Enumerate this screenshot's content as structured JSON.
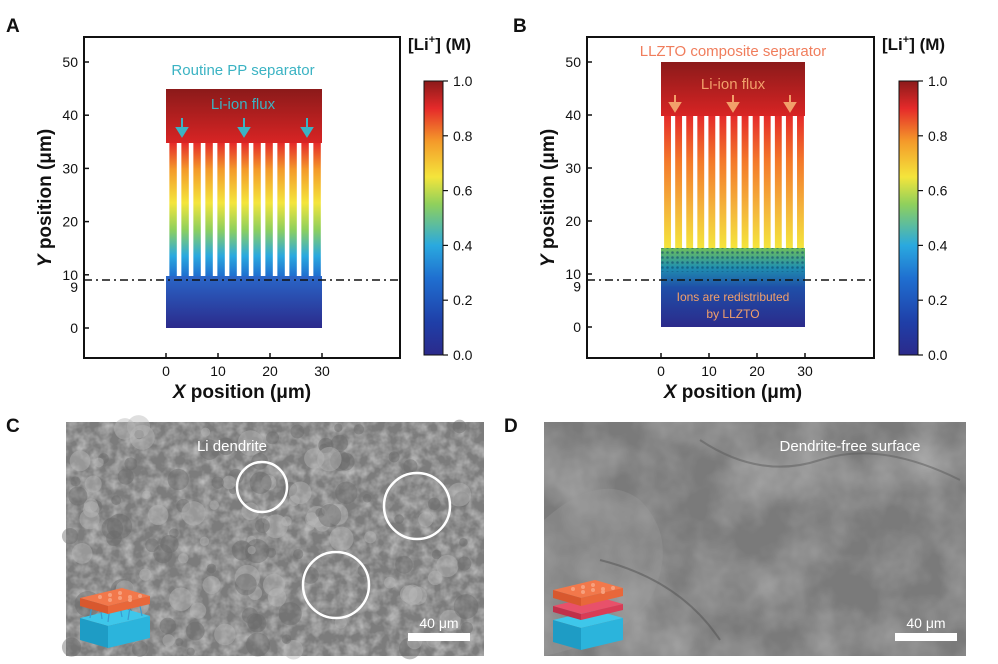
{
  "panels": {
    "A": {
      "letter": "A",
      "title": "Routine PP separator",
      "flux_label": "Li-ion flux",
      "xlabel_var": "X",
      "xlabel_rest": " position (μm)",
      "ylabel_var": "Y",
      "ylabel_rest": " position (μm)",
      "colorbar_title": "[Li+] (M)",
      "accent": "#3bb3c3"
    },
    "B": {
      "letter": "B",
      "title": "LLZTO composite separator",
      "flux_label": "Li-ion flux",
      "redistribution_note_line1": "Ions are redistributed",
      "redistribution_note_line2": "by LLZTO",
      "xlabel_var": "X",
      "xlabel_rest": " position (μm)",
      "ylabel_var": "Y",
      "ylabel_rest": " position (μm)",
      "colorbar_title": "[Li+] (M)",
      "accent": "#f07d5c"
    },
    "C": {
      "letter": "C",
      "label": "Li dendrite",
      "scale_bar": "40 μm"
    },
    "D": {
      "letter": "D",
      "label": "Dendrite-free surface",
      "scale_bar": "40 μm"
    }
  },
  "chart_data": [
    {
      "type": "heatmap",
      "panel": "A",
      "title": "Routine PP separator",
      "xlabel": "X position (μm)",
      "ylabel": "Y position (μm)",
      "x_ticks": [
        0,
        10,
        20,
        30
      ],
      "y_ticks": [
        0,
        9,
        10,
        20,
        30,
        40,
        50
      ],
      "xlim": [
        -15,
        45
      ],
      "ylim": [
        -5,
        55
      ],
      "dashed_line_y": 9,
      "colorbar": {
        "label": "[Li+] (M)",
        "range": [
          0.0,
          1.0
        ],
        "ticks": [
          0.0,
          0.2,
          0.4,
          0.6,
          0.8,
          1.0
        ]
      },
      "regions": [
        {
          "name": "source reservoir",
          "x": [
            0,
            30
          ],
          "y": [
            35,
            45
          ],
          "concentration": 1.0
        },
        {
          "name": "separator pores",
          "x": [
            0,
            30
          ],
          "y": [
            10,
            35
          ],
          "concentration_gradient": [
            0.85,
            0.3
          ]
        },
        {
          "name": "electrolyte near anode",
          "x": [
            0,
            30
          ],
          "y": [
            0,
            10
          ],
          "concentration": 0.1
        }
      ]
    },
    {
      "type": "heatmap",
      "panel": "B",
      "title": "LLZTO composite separator",
      "xlabel": "X position (μm)",
      "ylabel": "Y position (μm)",
      "x_ticks": [
        0,
        10,
        20,
        30
      ],
      "y_ticks": [
        0,
        9,
        10,
        20,
        30,
        40,
        50
      ],
      "xlim": [
        -15,
        45
      ],
      "ylim": [
        -5,
        55
      ],
      "dashed_line_y": 9,
      "colorbar": {
        "label": "[Li+] (M)",
        "range": [
          0.0,
          1.0
        ],
        "ticks": [
          0.0,
          0.2,
          0.4,
          0.6,
          0.8,
          1.0
        ]
      },
      "regions": [
        {
          "name": "source reservoir",
          "x": [
            0,
            30
          ],
          "y": [
            40,
            50
          ],
          "concentration": 1.0
        },
        {
          "name": "separator pores",
          "x": [
            0,
            30
          ],
          "y": [
            15,
            40
          ],
          "concentration_gradient": [
            0.9,
            0.5
          ]
        },
        {
          "name": "LLZTO layer",
          "x": [
            0,
            30
          ],
          "y": [
            0,
            15
          ],
          "concentration_gradient": [
            0.4,
            0.1
          ]
        }
      ]
    }
  ],
  "colors": {
    "jet": [
      "#2b2a8b",
      "#1f56b8",
      "#2aa9df",
      "#8fd05c",
      "#f4e53b",
      "#f49a2a",
      "#e52a2a",
      "#8b1a1a"
    ],
    "micrograph_gray": "#8a8a8a"
  }
}
